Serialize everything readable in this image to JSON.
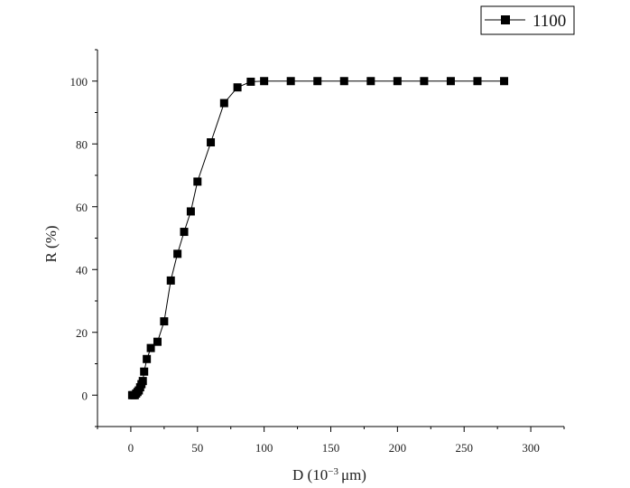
{
  "chart_data": {
    "type": "line",
    "xlabel_main": "D  (10",
    "xlabel_sup": "−3",
    "xlabel_tail": "μm)",
    "ylabel": "R  (%)",
    "xlim": [
      -25,
      325
    ],
    "ylim": [
      -10,
      110
    ],
    "x_ticks": [
      0,
      50,
      100,
      150,
      200,
      250,
      300
    ],
    "x_tick_labels": [
      "0",
      "50",
      "100",
      "150",
      "200",
      "250",
      "300"
    ],
    "y_ticks": [
      0,
      20,
      40,
      60,
      80,
      100
    ],
    "y_tick_labels": [
      "0",
      "20",
      "40",
      "60",
      "80",
      "100"
    ],
    "legend_position": "top-right",
    "series": [
      {
        "name": "1100",
        "color": "#000000",
        "marker": "square",
        "x": [
          1,
          2,
          3,
          4,
          5,
          6,
          7,
          8,
          9,
          10,
          12,
          15,
          20,
          25,
          30,
          35,
          40,
          45,
          50,
          60,
          70,
          80,
          90,
          100,
          120,
          140,
          160,
          180,
          200,
          220,
          240,
          260,
          280
        ],
        "y": [
          0,
          0,
          0,
          0.5,
          1,
          1.5,
          2.5,
          3.5,
          4.5,
          7.5,
          11.5,
          15,
          17,
          23.5,
          36.5,
          45,
          52,
          58.5,
          68,
          80.5,
          93,
          98,
          99.8,
          100,
          100,
          100,
          100,
          100,
          100,
          100,
          100,
          100,
          100
        ]
      }
    ]
  }
}
